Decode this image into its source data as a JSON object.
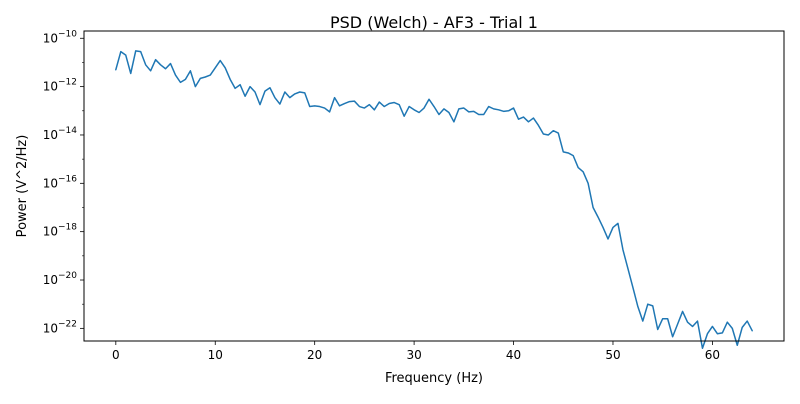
{
  "chart_data": {
    "type": "line",
    "title": "PSD (Welch) - AF3 - Trial 1",
    "xlabel": "Frequency (Hz)",
    "ylabel": "Power (V^2/Hz)",
    "xlim": [
      -3.2,
      67.2
    ],
    "ylim": [
      3e-23,
      2e-10
    ],
    "yscale": "log",
    "grid": false,
    "x_ticks": [
      0,
      10,
      20,
      30,
      40,
      50,
      60
    ],
    "y_ticks": [
      {
        "value": 1e-22,
        "base": "10",
        "exponent": "−22"
      },
      {
        "value": 1e-20,
        "base": "10",
        "exponent": "−20"
      },
      {
        "value": 1e-18,
        "base": "10",
        "exponent": "−18"
      },
      {
        "value": 1e-16,
        "base": "10",
        "exponent": "−16"
      },
      {
        "value": 1e-14,
        "base": "10",
        "exponent": "−14"
      },
      {
        "value": 1e-12,
        "base": "10",
        "exponent": "−12"
      },
      {
        "value": 1e-10,
        "base": "10",
        "exponent": "−10"
      }
    ],
    "series": [
      {
        "color": "#1f77b4",
        "x": [
          0,
          0.5,
          1,
          1.5,
          2,
          2.5,
          3,
          3.5,
          4,
          4.5,
          5,
          5.5,
          6,
          6.5,
          7,
          7.5,
          8,
          8.5,
          9,
          9.5,
          10,
          10.5,
          11,
          11.5,
          12,
          12.5,
          13,
          13.5,
          14,
          14.5,
          15,
          15.5,
          16,
          16.5,
          17,
          17.5,
          18,
          18.5,
          19,
          19.5,
          20,
          20.5,
          21,
          21.5,
          22,
          22.5,
          23,
          23.5,
          24,
          24.5,
          25,
          25.5,
          26,
          26.5,
          27,
          27.5,
          28,
          28.5,
          29,
          29.5,
          30,
          30.5,
          31,
          31.5,
          32,
          32.5,
          33,
          33.5,
          34,
          34.5,
          35,
          35.5,
          36,
          36.5,
          37,
          37.5,
          38,
          38.5,
          39,
          39.5,
          40,
          40.5,
          41,
          41.5,
          42,
          42.5,
          43,
          43.5,
          44,
          44.5,
          45,
          45.5,
          46,
          46.5,
          47,
          47.5,
          48,
          48.5,
          49,
          49.5,
          50,
          50.5,
          51,
          51.5,
          52,
          52.5,
          53,
          53.5,
          54,
          54.5,
          55,
          55.5,
          56,
          56.5,
          57,
          57.5,
          58,
          58.5,
          59,
          59.5,
          60,
          60.5,
          61,
          61.5,
          62,
          62.5,
          63,
          63.5,
          64
        ],
        "y": [
          5e-12,
          2.8e-11,
          2e-11,
          3.5e-12,
          3e-11,
          2.8e-11,
          8e-12,
          4.5e-12,
          1.3e-11,
          8e-12,
          5.5e-12,
          9e-12,
          3e-12,
          1.5e-12,
          2e-12,
          4.5e-12,
          1e-12,
          2.2e-12,
          2.5e-12,
          3e-12,
          6e-12,
          1.2e-11,
          6e-12,
          2e-12,
          8.5e-13,
          1.2e-12,
          4e-13,
          1e-12,
          6e-13,
          1.8e-13,
          6.5e-13,
          9e-13,
          3.5e-13,
          1.9e-13,
          6e-13,
          3.5e-13,
          5e-13,
          6e-13,
          5.5e-13,
          1.5e-13,
          1.6e-13,
          1.5e-13,
          1.3e-13,
          9e-14,
          3.5e-13,
          1.6e-13,
          2e-13,
          2.4e-13,
          2.5e-13,
          1.5e-13,
          1.3e-13,
          1.8e-13,
          1.1e-13,
          2.3e-13,
          1.5e-13,
          2e-13,
          2.2e-13,
          1.8e-13,
          6e-14,
          1.5e-13,
          1.1e-13,
          8.5e-14,
          1.3e-13,
          3e-13,
          1.5e-13,
          7e-14,
          1.2e-13,
          8.5e-14,
          3.5e-14,
          1.2e-13,
          1.3e-13,
          9e-14,
          9.5e-14,
          7e-14,
          7e-14,
          1.5e-13,
          1.2e-13,
          1.1e-13,
          9.5e-14,
          1e-13,
          1.3e-13,
          4.5e-14,
          5.5e-14,
          3.5e-14,
          5e-14,
          2.5e-14,
          1.1e-14,
          1e-14,
          1.5e-14,
          1.2e-14,
          2e-15,
          1.8e-15,
          1.4e-15,
          4.5e-16,
          3e-16,
          1e-16,
          1e-17,
          4e-18,
          1.5e-18,
          5e-19,
          1.5e-18,
          2.2e-18,
          1.8e-19,
          3e-20,
          5e-21,
          8e-22,
          2e-22,
          1e-21,
          8.5e-22,
          9e-23,
          2.5e-22,
          2.5e-22,
          4.5e-23,
          1.5e-22,
          5e-22,
          1.8e-22,
          1.2e-22,
          2e-22,
          1.5e-23,
          6e-23,
          1.2e-22,
          6e-23,
          6.5e-23,
          1.8e-22,
          1e-22,
          2e-23,
          1.1e-22,
          2e-22,
          8e-23
        ]
      }
    ]
  }
}
